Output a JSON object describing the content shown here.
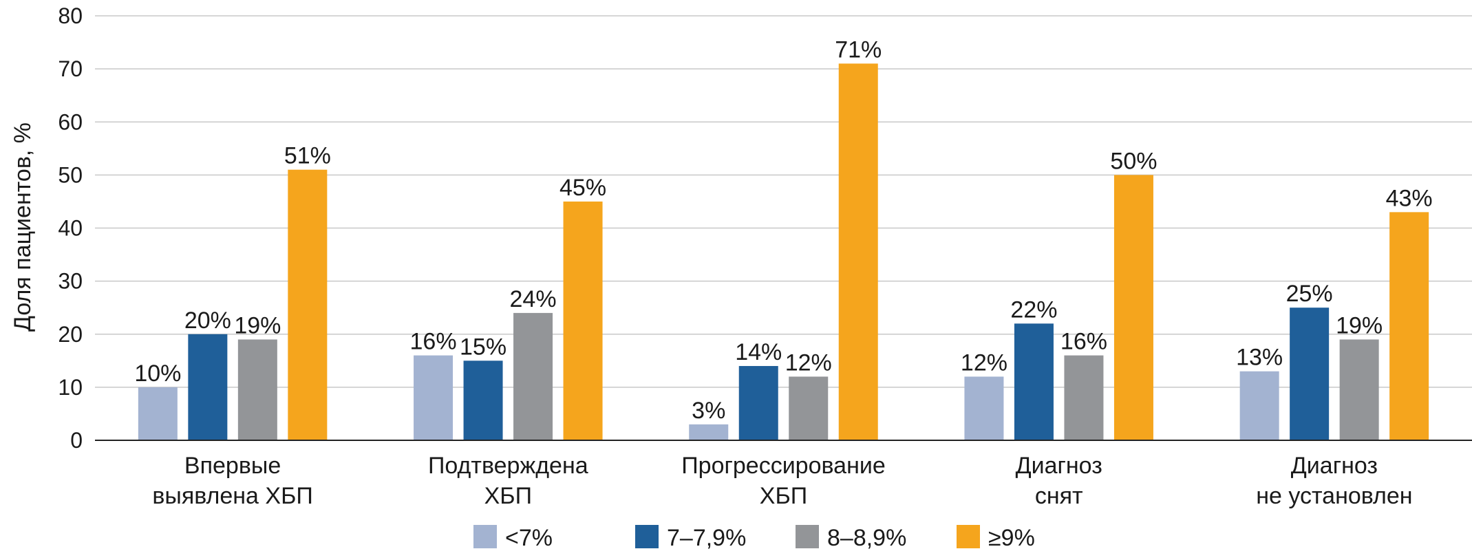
{
  "chart_data": {
    "type": "bar",
    "title": "",
    "ylabel": "Доля пациентов, %",
    "xlabel": "",
    "ylim": [
      0,
      80
    ],
    "yticks": [
      "0",
      "10",
      "20",
      "30",
      "40",
      "50",
      "60",
      "70",
      "80"
    ],
    "grid": true,
    "legend_position": "bottom",
    "categories": [
      [
        "Впервые",
        "выявлена ХБП"
      ],
      [
        "Подтверждена",
        "ХБП"
      ],
      [
        "Прогрессирование",
        "ХБП"
      ],
      [
        "Диагноз",
        "снят"
      ],
      [
        "Диагноз",
        "не установлен"
      ]
    ],
    "series": [
      {
        "name": "<7%",
        "color": "#a3b3d1",
        "values": [
          10,
          16,
          3,
          12,
          13
        ],
        "labels": [
          "10%",
          "16%",
          "3%",
          "12%",
          "13%"
        ]
      },
      {
        "name": "7–7,9%",
        "color": "#1f5f99",
        "values": [
          20,
          15,
          14,
          22,
          25
        ],
        "labels": [
          "20%",
          "15%",
          "14%",
          "22%",
          "25%"
        ]
      },
      {
        "name": "8–8,9%",
        "color": "#939598",
        "values": [
          19,
          24,
          12,
          16,
          19
        ],
        "labels": [
          "19%",
          "24%",
          "12%",
          "16%",
          "19%"
        ]
      },
      {
        "name": "≥9%",
        "color": "#f5a51d",
        "values": [
          51,
          45,
          71,
          50,
          43
        ],
        "labels": [
          "51%",
          "45%",
          "71%",
          "50%",
          "43%"
        ]
      }
    ]
  }
}
